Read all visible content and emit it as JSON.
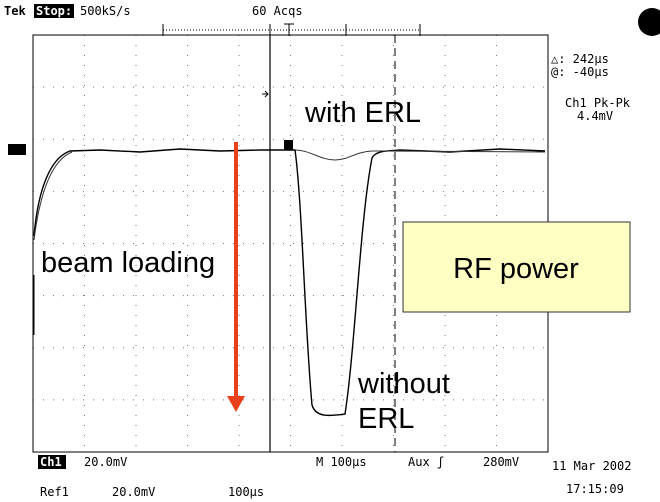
{
  "header": {
    "brand": "Tek",
    "status": "Stop:",
    "sample_rate": "500kS/s",
    "acquisitions": "60 Acqs"
  },
  "readout": {
    "delta": "△: 242µs",
    "offset": "@: -40µs",
    "measurement": "Ch1 Pk-Pk",
    "measurement_value": "4.4mV"
  },
  "annotations": {
    "with_erl": "with ERL",
    "beam_loading": "beam loading",
    "rf_power": "RF power",
    "without_erl": [
      "without",
      "ERL"
    ]
  },
  "footer": {
    "channel": "Ch1",
    "channel_scale": "20.0mV",
    "timebase": "M 100µs",
    "trigger": "Aux ʃ",
    "trigger_level": "280mV",
    "date": "11 Mar 2002",
    "time": "17:15:09",
    "ref": "Ref1",
    "ref_scale": "20.0mV",
    "ref_timebase": "100µs"
  }
}
